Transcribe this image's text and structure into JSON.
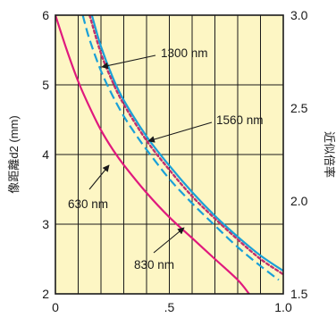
{
  "chart_data": {
    "type": "line",
    "title": "",
    "xlabel": "",
    "ylabel": "像距離d2 (mm)",
    "y2label": "近似倍率",
    "xlim": [
      0,
      1.0
    ],
    "ylim": [
      2,
      6
    ],
    "y2lim": [
      1.5,
      3.0
    ],
    "x_ticks": [
      "0",
      ".5",
      "1.0"
    ],
    "y_ticks": [
      "2",
      "3",
      "4",
      "5",
      "6"
    ],
    "y2_ticks": [
      "1.5",
      "2.0",
      "2.5",
      "3.0"
    ],
    "grid": true,
    "background_color": "#fdf6c4",
    "series": [
      {
        "name": "630 nm",
        "color": "#e0197d",
        "dash": "solid",
        "x": [
          0.0,
          0.05,
          0.1,
          0.15,
          0.2,
          0.25,
          0.3,
          0.4,
          0.5,
          0.6,
          0.7,
          0.8,
          0.85
        ],
        "y": [
          6.0,
          5.5,
          5.05,
          4.68,
          4.35,
          4.08,
          3.85,
          3.45,
          3.1,
          2.8,
          2.5,
          2.2,
          2.0
        ]
      },
      {
        "name": "830 nm",
        "color": "#1aa0d8",
        "dash": "dashed",
        "x": [
          0.12,
          0.15,
          0.2,
          0.25,
          0.3,
          0.35,
          0.4,
          0.5,
          0.6,
          0.7,
          0.8,
          0.9,
          0.98
        ],
        "y": [
          6.0,
          5.65,
          5.2,
          4.85,
          4.55,
          4.3,
          4.07,
          3.65,
          3.3,
          2.98,
          2.67,
          2.4,
          2.2
        ]
      },
      {
        "name": "1300 nm",
        "color": "#c0306e",
        "dash": "dotted",
        "x": [
          0.15,
          0.2,
          0.25,
          0.3,
          0.4,
          0.5,
          0.6,
          0.7,
          0.8,
          0.9,
          1.0
        ],
        "y": [
          6.0,
          5.45,
          5.05,
          4.72,
          4.2,
          3.78,
          3.4,
          3.08,
          2.78,
          2.5,
          2.28
        ]
      },
      {
        "name": "1560 nm",
        "color": "#1aa0d8",
        "dash": "solid",
        "x": [
          0.16,
          0.2,
          0.25,
          0.3,
          0.4,
          0.5,
          0.6,
          0.7,
          0.8,
          0.9,
          1.0
        ],
        "y": [
          6.0,
          5.55,
          5.12,
          4.78,
          4.26,
          3.84,
          3.46,
          3.12,
          2.82,
          2.55,
          2.33
        ]
      }
    ]
  }
}
